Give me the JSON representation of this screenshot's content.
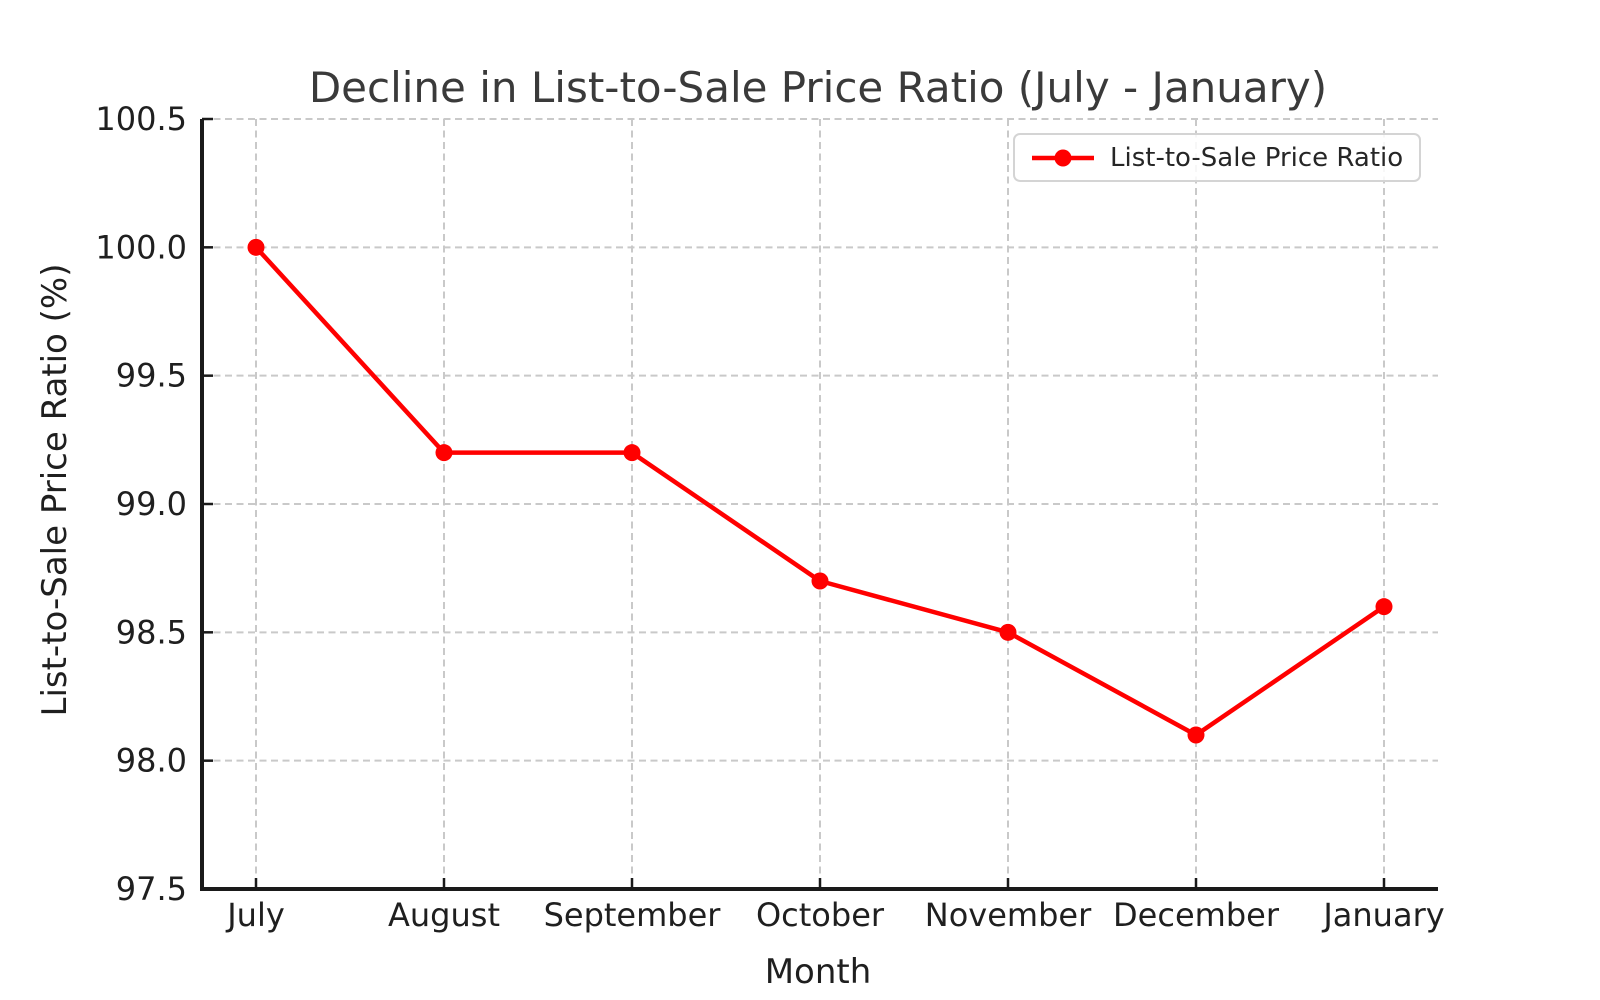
{
  "chart_data": {
    "type": "line",
    "title": "Decline in List-to-Sale Price Ratio (July - January)",
    "xlabel": "Month",
    "ylabel": "List-to-Sale Price Ratio (%)",
    "categories": [
      "July",
      "August",
      "September",
      "October",
      "November",
      "December",
      "January"
    ],
    "series": [
      {
        "name": "List-to-Sale Price Ratio",
        "values": [
          100.0,
          99.2,
          99.2,
          98.7,
          98.5,
          98.1,
          98.6
        ]
      }
    ],
    "ylim": [
      97.5,
      100.5
    ],
    "yticks": [
      100.5,
      100.0,
      99.5,
      99.0,
      98.5,
      98.0,
      97.5
    ],
    "ytick_labels": [
      "100.5",
      "100.0",
      "99.5",
      "99.0",
      "98.5",
      "98.0",
      "97.5"
    ],
    "grid": "dashed-both-axes",
    "legend_position": "upper-right",
    "colors": {
      "line": "#ff0000",
      "marker": "#ff0000",
      "grid": "#c9c9c9",
      "spine": "#1a1a1a",
      "tick_text": "#1f1f1f",
      "title_text": "#3a3a3a",
      "legend_text": "#262626",
      "legend_border": "#d4d4d4",
      "background": "#ffffff"
    }
  }
}
